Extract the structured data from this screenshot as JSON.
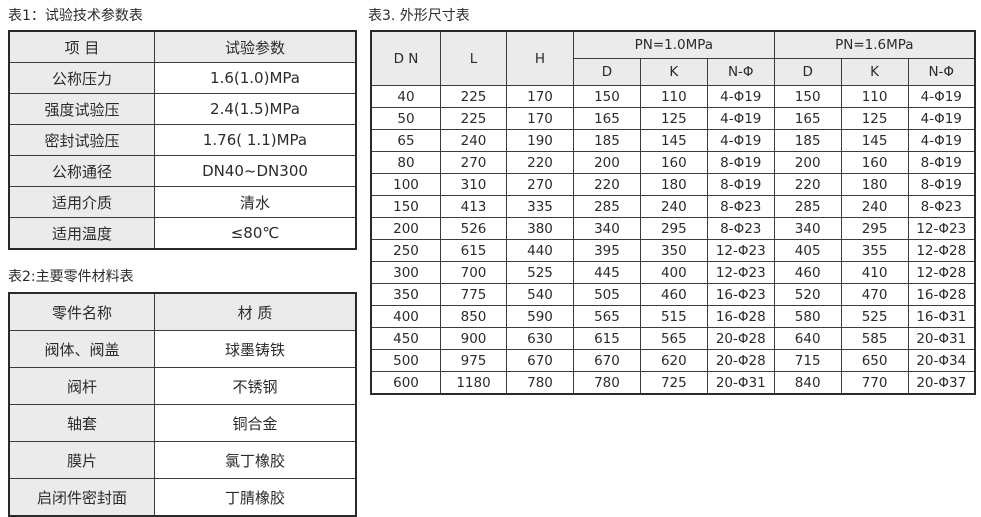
{
  "colors": {
    "header_fill": "#ebebeb",
    "border": "#3c3c3c",
    "text": "#2b2b2b",
    "background": "#ffffff"
  },
  "table1": {
    "title": "表1：试验技术参数表",
    "header": [
      "项 目",
      "试验参数"
    ],
    "rows": [
      [
        "公称压力",
        "1.6(1.0)MPa"
      ],
      [
        "强度试验压",
        "2.4(1.5)MPa"
      ],
      [
        "密封试验压",
        "1.76( 1.1)MPa"
      ],
      [
        "公称通径",
        "DN40~DN300"
      ],
      [
        "适用介质",
        "清水"
      ],
      [
        "适用温度",
        "≤80℃"
      ]
    ]
  },
  "table2": {
    "title": "表2:主要零件材料表",
    "header": [
      "零件名称",
      "材 质"
    ],
    "rows": [
      [
        "阀体、阀盖",
        "球墨铸铁"
      ],
      [
        "阀杆",
        "不锈钢"
      ],
      [
        "轴套",
        "铜合金"
      ],
      [
        "膜片",
        "氯丁橡胶"
      ],
      [
        "启闭件密封面",
        "丁腈橡胶"
      ]
    ]
  },
  "table3": {
    "title": "表3. 外形尺寸表",
    "header": {
      "dn": "D N",
      "l": "L",
      "h": "H",
      "pn10": "PN=1.0MPa",
      "pn16": "PN=1.6MPa",
      "d": "D",
      "k": "K",
      "nphi": "N-Φ"
    },
    "rows": [
      [
        "40",
        "225",
        "170",
        "150",
        "110",
        "4-Φ19",
        "150",
        "110",
        "4-Φ19"
      ],
      [
        "50",
        "225",
        "170",
        "165",
        "125",
        "4-Φ19",
        "165",
        "125",
        "4-Φ19"
      ],
      [
        "65",
        "240",
        "190",
        "185",
        "145",
        "4-Φ19",
        "185",
        "145",
        "4-Φ19"
      ],
      [
        "80",
        "270",
        "220",
        "200",
        "160",
        "8-Φ19",
        "200",
        "160",
        "8-Φ19"
      ],
      [
        "100",
        "310",
        "270",
        "220",
        "180",
        "8-Φ19",
        "220",
        "180",
        "8-Φ19"
      ],
      [
        "150",
        "413",
        "335",
        "285",
        "240",
        "8-Φ23",
        "285",
        "240",
        "8-Φ23"
      ],
      [
        "200",
        "526",
        "380",
        "340",
        "295",
        "8-Φ23",
        "340",
        "295",
        "12-Φ23"
      ],
      [
        "250",
        "615",
        "440",
        "395",
        "350",
        "12-Φ23",
        "405",
        "355",
        "12-Φ28"
      ],
      [
        "300",
        "700",
        "525",
        "445",
        "400",
        "12-Φ23",
        "460",
        "410",
        "12-Φ28"
      ],
      [
        "350",
        "775",
        "540",
        "505",
        "460",
        "16-Φ23",
        "520",
        "470",
        "16-Φ28"
      ],
      [
        "400",
        "850",
        "590",
        "565",
        "515",
        "16-Φ28",
        "580",
        "525",
        "16-Φ31"
      ],
      [
        "450",
        "900",
        "630",
        "615",
        "565",
        "20-Φ28",
        "640",
        "585",
        "20-Φ31"
      ],
      [
        "500",
        "975",
        "670",
        "670",
        "620",
        "20-Φ28",
        "715",
        "650",
        "20-Φ34"
      ],
      [
        "600",
        "1180",
        "780",
        "780",
        "725",
        "20-Φ31",
        "840",
        "770",
        "20-Φ37"
      ]
    ]
  }
}
